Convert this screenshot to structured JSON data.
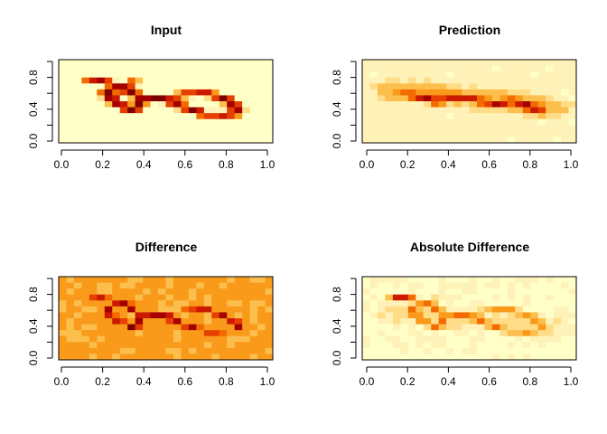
{
  "colors": {
    "heat": [
      "#7F0000",
      "#A50000",
      "#CC1A00",
      "#E64000",
      "#F36B00",
      "#F99A1A",
      "#FCBF4D",
      "#FFDD88",
      "#FFF2B8",
      "#FFFFC8"
    ]
  },
  "chart_data": [
    {
      "type": "heatmap",
      "title": "Input",
      "xlim": [
        0,
        1
      ],
      "ylim": [
        0,
        1
      ],
      "xticks": [
        "0.0",
        "0.2",
        "0.4",
        "0.6",
        "0.8",
        "1.0"
      ],
      "yticks": [
        "0.0",
        "0.4",
        "0.8"
      ],
      "background": 0,
      "strokes": [
        {
          "x": [
            0.14,
            0.2,
            0.3,
            0.4,
            0.5,
            0.6,
            0.7,
            0.8,
            0.86,
            0.84,
            0.7,
            0.6,
            0.5,
            0.4,
            0.35,
            0.25,
            0.22,
            0.27,
            0.35
          ],
          "y": [
            0.73,
            0.74,
            0.66,
            0.52,
            0.54,
            0.58,
            0.6,
            0.52,
            0.42,
            0.35,
            0.34,
            0.42,
            0.52,
            0.55,
            0.38,
            0.5,
            0.6,
            0.66,
            0.72
          ],
          "v": 1.0,
          "w": 0.024,
          "edge": 0.75
        }
      ]
    },
    {
      "type": "heatmap",
      "title": "Prediction",
      "xlim": [
        0,
        1
      ],
      "ylim": [
        0,
        1
      ],
      "xticks": [
        "0.0",
        "0.2",
        "0.4",
        "0.6",
        "0.8",
        "1.0"
      ],
      "yticks": [
        "0.0",
        "0.4",
        "0.8"
      ],
      "background": 0.08,
      "strokes": [
        {
          "x": [
            0.16,
            0.3,
            0.45,
            0.6,
            0.75,
            0.87
          ],
          "y": [
            0.62,
            0.62,
            0.55,
            0.52,
            0.48,
            0.42
          ],
          "v": 0.45,
          "w": 0.09,
          "edge": 0.3
        },
        {
          "x": [
            0.2,
            0.26,
            0.35,
            0.47,
            0.56,
            0.64,
            0.72,
            0.78,
            0.84
          ],
          "y": [
            0.58,
            0.55,
            0.5,
            0.55,
            0.5,
            0.46,
            0.5,
            0.46,
            0.38
          ],
          "v": 0.85,
          "w": 0.035,
          "edge": 0.55
        }
      ]
    },
    {
      "type": "heatmap",
      "title": "Difference",
      "xlim": [
        0,
        1
      ],
      "ylim": [
        0,
        1
      ],
      "xticks": [
        "0.0",
        "0.2",
        "0.4",
        "0.6",
        "0.8",
        "1.0"
      ],
      "yticks": [
        "0.0",
        "0.4",
        "0.8"
      ],
      "background": 0.42,
      "strokes": [
        {
          "x": [
            0.15,
            0.3,
            0.45,
            0.6,
            0.75,
            0.87
          ],
          "y": [
            0.55,
            0.52,
            0.46,
            0.5,
            0.46,
            0.38
          ],
          "v": 0.1,
          "w": 0.05,
          "edge": 0.3
        },
        {
          "x": [
            0.14,
            0.2,
            0.3,
            0.4,
            0.5,
            0.6,
            0.7,
            0.8,
            0.86,
            0.84,
            0.7,
            0.6,
            0.5,
            0.4,
            0.35,
            0.25,
            0.22,
            0.27,
            0.35
          ],
          "y": [
            0.73,
            0.74,
            0.66,
            0.52,
            0.54,
            0.58,
            0.6,
            0.52,
            0.42,
            0.35,
            0.34,
            0.42,
            0.52,
            0.55,
            0.38,
            0.5,
            0.6,
            0.66,
            0.72
          ],
          "v": 0.95,
          "w": 0.02,
          "edge": 0.7
        }
      ]
    },
    {
      "type": "heatmap",
      "title": "Absolute Difference",
      "xlim": [
        0,
        1
      ],
      "ylim": [
        0,
        1
      ],
      "xticks": [
        "0.0",
        "0.2",
        "0.4",
        "0.6",
        "0.8",
        "1.0"
      ],
      "yticks": [
        "0.0",
        "0.4",
        "0.8"
      ],
      "background": 0.02,
      "strokes": [
        {
          "x": [
            0.16,
            0.3,
            0.45,
            0.6,
            0.75,
            0.88
          ],
          "y": [
            0.55,
            0.52,
            0.48,
            0.5,
            0.46,
            0.38
          ],
          "v": 0.22,
          "w": 0.08,
          "edge": 0.2
        },
        {
          "x": [
            0.14,
            0.2,
            0.3,
            0.4,
            0.5,
            0.6,
            0.7,
            0.8,
            0.86,
            0.84,
            0.7,
            0.6,
            0.5,
            0.4,
            0.35,
            0.25,
            0.22,
            0.27,
            0.35
          ],
          "y": [
            0.73,
            0.74,
            0.66,
            0.52,
            0.54,
            0.58,
            0.6,
            0.52,
            0.42,
            0.35,
            0.34,
            0.42,
            0.52,
            0.55,
            0.38,
            0.5,
            0.6,
            0.66,
            0.72
          ],
          "v": 0.55,
          "w": 0.022,
          "edge": 0.4
        },
        {
          "x": [
            0.14,
            0.2
          ],
          "y": [
            0.74,
            0.74
          ],
          "v": 0.95,
          "w": 0.02,
          "edge": 0.7
        }
      ]
    }
  ]
}
